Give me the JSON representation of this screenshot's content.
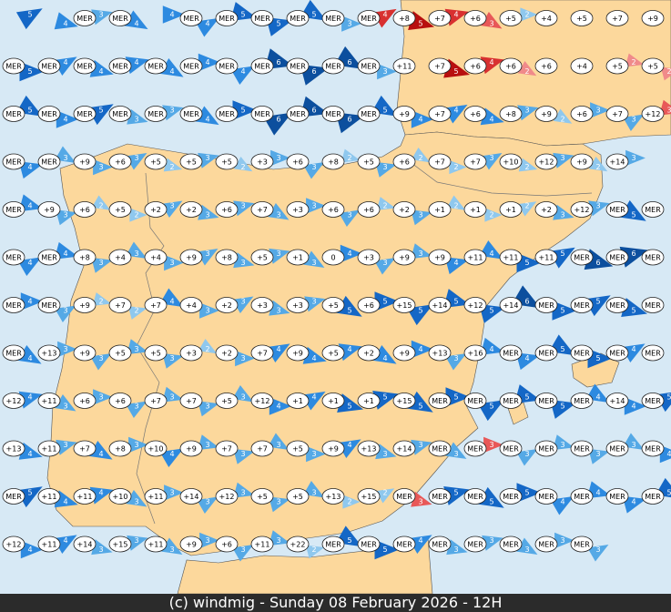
{
  "map": {
    "footer": "(c) windmig - Sunday 08 February 2026 - 12H",
    "stations": [
      [
        null,
        null,
        "MER",
        "MER",
        null,
        "MER",
        "MER",
        "MER",
        "MER",
        "MER",
        "MER",
        "+8",
        "+7",
        "+6",
        "+5",
        "+4",
        "+5",
        "+7",
        "+9"
      ],
      [
        "MER",
        "MER",
        "MER",
        "MER",
        "MER",
        "MER",
        "MER",
        "MER",
        "MER",
        "MER",
        "MER",
        "+11",
        "+7",
        "+6",
        "+6",
        "+6",
        "+4",
        "+5",
        "+5"
      ],
      [
        "MER",
        "MER",
        "MER",
        "MER",
        "MER",
        "MER",
        "MER",
        "MER",
        "MER",
        "MER",
        "MER",
        "+9",
        "+7",
        "+6",
        "+8",
        "+9",
        "+6",
        "+7",
        "+12"
      ],
      [
        "MER",
        "MER",
        "+9",
        "+6",
        "+5",
        "+5",
        "+5",
        "+3",
        "+6",
        "+8",
        "+5",
        "+6",
        "+7",
        "+7",
        "+10",
        "+12",
        "+9",
        "+14",
        null
      ],
      [
        "MER",
        "+9",
        "+6",
        "+5",
        "+2",
        "+2",
        "+6",
        "+7",
        "+3",
        "+6",
        "+6",
        "+2",
        "+1",
        "+1",
        "+1",
        "+2",
        "+12",
        "MER",
        "MER"
      ],
      [
        "MER",
        "MER",
        "+8",
        "+4",
        "+4",
        "+9",
        "+8",
        "+5",
        "+1",
        "0",
        "+3",
        "+9",
        "+9",
        "+11",
        "+11",
        "+11",
        "MER",
        "MER",
        "MER"
      ],
      [
        "MER",
        "MER",
        "+9",
        "+7",
        "+7",
        "+4",
        "+2",
        "+3",
        "+3",
        "+5",
        "+6",
        "+15",
        "+14",
        "+12",
        "+14",
        "MER",
        "MER",
        "MER",
        "MER"
      ],
      [
        "MER",
        "+13",
        "+9",
        "+5",
        "+5",
        "+3",
        "+2",
        "+7",
        "+9",
        "+5",
        "+2",
        "+9",
        "+13",
        "+16",
        "MER",
        "MER",
        "MER",
        "MER",
        "MER"
      ],
      [
        "+12",
        "+11",
        "+6",
        "+6",
        "+7",
        "+7",
        "+5",
        "+12",
        "+1",
        "+1",
        "+1",
        "+15",
        "MER",
        "MER",
        "MER",
        "MER",
        "MER",
        "+14",
        "MER"
      ],
      [
        "+13",
        "+11",
        "+7",
        "+8",
        "+10",
        "+9",
        "+7",
        "+7",
        "+5",
        "+9",
        "+13",
        "+14",
        "MER",
        "MER",
        "MER",
        "MER",
        "MER",
        "MER",
        "MER"
      ],
      [
        "MER",
        "+11",
        "+11",
        "+10",
        "+11",
        "+14",
        "+12",
        "+5",
        "+5",
        "+13",
        "+15",
        "MER",
        "MER",
        "MER",
        "MER",
        "MER",
        "MER",
        "MER",
        "MER"
      ],
      [
        "+12",
        "+11",
        "+14",
        "+15",
        "+11",
        "+9",
        "+6",
        "+11",
        "+22",
        "MER",
        "MER",
        "MER",
        "MER",
        "MER",
        "MER",
        "MER",
        "MER",
        null,
        null
      ]
    ],
    "wind": [
      [
        5,
        4,
        3,
        4,
        4,
        4,
        5,
        5,
        5,
        3,
        4,
        5,
        4,
        3,
        2,
        null,
        null,
        null,
        null
      ],
      [
        5,
        4,
        4,
        4,
        4,
        4,
        4,
        6,
        6,
        6,
        3,
        null,
        5,
        4,
        2,
        null,
        null,
        2,
        2
      ],
      [
        5,
        4,
        5,
        3,
        3,
        4,
        5,
        6,
        6,
        6,
        5,
        4,
        4,
        4,
        3,
        2,
        3,
        3,
        3
      ],
      [
        4,
        3,
        3,
        3,
        2,
        3,
        2,
        3,
        3,
        2,
        3,
        2,
        2,
        3,
        2,
        3,
        2,
        3,
        null
      ],
      [
        4,
        3,
        2,
        2,
        3,
        3,
        3,
        3,
        3,
        3,
        2,
        3,
        2,
        2,
        2,
        3,
        3,
        5,
        null
      ],
      [
        4,
        4,
        3,
        3,
        3,
        3,
        3,
        3,
        3,
        4,
        3,
        3,
        4,
        4,
        5,
        5,
        6,
        6,
        null
      ],
      [
        4,
        3,
        2,
        2,
        4,
        3,
        3,
        3,
        3,
        5,
        5,
        5,
        5,
        5,
        6,
        5,
        5,
        5,
        null
      ],
      [
        4,
        3,
        3,
        3,
        3,
        2,
        3,
        4,
        4,
        4,
        4,
        4,
        3,
        4,
        4,
        5,
        5,
        4,
        null
      ],
      [
        4,
        3,
        3,
        3,
        3,
        3,
        3,
        4,
        4,
        5,
        5,
        5,
        5,
        5,
        5,
        5,
        4,
        4,
        5
      ],
      [
        4,
        3,
        4,
        3,
        4,
        3,
        3,
        3,
        3,
        4,
        3,
        3,
        3,
        3,
        3,
        3,
        3,
        3,
        4
      ],
      [
        5,
        4,
        4,
        3,
        3,
        3,
        3,
        3,
        3,
        2,
        2,
        3,
        5,
        5,
        5,
        4,
        4,
        4,
        5
      ],
      [
        4,
        4,
        3,
        3,
        3,
        3,
        3,
        3,
        2,
        5,
        5,
        4,
        3,
        3,
        3,
        3,
        3,
        null,
        null
      ]
    ],
    "palette": {
      "2": "#8fc8ee",
      "3": "#55a9e6",
      "4": "#2d8ae0",
      "5": "#1467c6",
      "6": "#0c4f9e"
    },
    "alert_palette": {
      "2": "#f08a8a",
      "3": "#e85858",
      "4": "#d83030",
      "5": "#b80f0f"
    },
    "alerts": [
      [
        0,
        10
      ],
      [
        0,
        11
      ],
      [
        0,
        12
      ],
      [
        0,
        13
      ],
      [
        1,
        12
      ],
      [
        1,
        13
      ],
      [
        1,
        14
      ],
      [
        1,
        17
      ],
      [
        1,
        18
      ],
      [
        2,
        18
      ],
      [
        9,
        13
      ],
      [
        10,
        11
      ]
    ]
  }
}
